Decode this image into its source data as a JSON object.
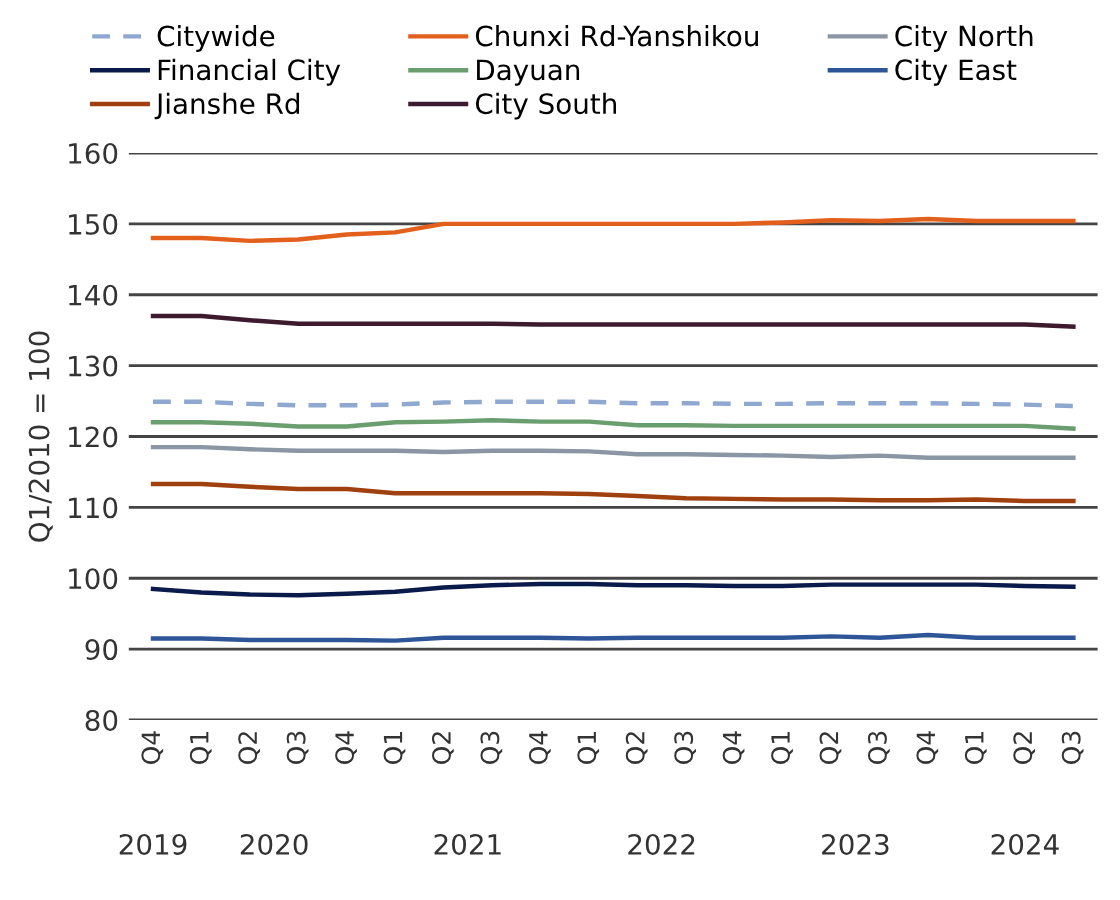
{
  "chart_data": {
    "type": "line",
    "ylabel": "Q1/2010 = 100",
    "categories": [
      "Q4",
      "Q1",
      "Q2",
      "Q3",
      "Q4",
      "Q1",
      "Q2",
      "Q3",
      "Q4",
      "Q1",
      "Q2",
      "Q3",
      "Q4",
      "Q1",
      "Q2",
      "Q3",
      "Q4",
      "Q1",
      "Q2",
      "Q3"
    ],
    "annotations": [
      "2019",
      "2020",
      "2021",
      "2022",
      "2023",
      "2024"
    ],
    "ylim": [
      80,
      160
    ],
    "yticks": [
      80,
      90,
      100,
      110,
      120,
      130,
      140,
      150,
      160
    ],
    "grid": "y",
    "legend": "top",
    "marker": "none",
    "series": [
      {
        "name": "Citywide",
        "color": "#8fa8d0",
        "line_style": "dashed",
        "values": [
          124.9,
          124.9,
          124.6,
          124.4,
          124.4,
          124.5,
          124.8,
          124.9,
          124.9,
          124.9,
          124.7,
          124.7,
          124.6,
          124.6,
          124.7,
          124.7,
          124.7,
          124.6,
          124.5,
          124.3
        ]
      },
      {
        "name": "Financial City",
        "color": "#0a1a4a",
        "values": [
          98.5,
          98,
          97.7,
          97.6,
          97.8,
          98.1,
          98.7,
          99,
          99.2,
          99.2,
          99,
          99,
          98.9,
          98.9,
          99.1,
          99.1,
          99.1,
          99.1,
          98.9,
          98.8
        ]
      },
      {
        "name": "Jianshe Rd",
        "color": "#a0400f",
        "values": [
          113.3,
          113.3,
          112.9,
          112.6,
          112.6,
          112,
          112,
          112,
          112,
          111.9,
          111.6,
          111.3,
          111.2,
          111.1,
          111.1,
          111,
          111,
          111.1,
          110.9,
          110.9
        ]
      },
      {
        "name": "Chunxi Rd-Yanshikou",
        "color": "#e35f1c",
        "values": [
          148,
          148,
          147.6,
          147.8,
          148.5,
          148.8,
          150,
          150,
          150,
          150,
          150,
          150,
          150,
          150.2,
          150.5,
          150.4,
          150.7,
          150.4,
          150.4,
          150.4
        ]
      },
      {
        "name": "Dayuan",
        "color": "#6a9e6e",
        "values": [
          122,
          122,
          121.8,
          121.4,
          121.4,
          122,
          122.1,
          122.3,
          122.1,
          122.1,
          121.6,
          121.6,
          121.5,
          121.5,
          121.5,
          121.5,
          121.5,
          121.5,
          121.5,
          121.1
        ]
      },
      {
        "name": "City South",
        "color": "#3d1a2e",
        "values": [
          137,
          137,
          136.4,
          135.9,
          135.9,
          135.9,
          135.9,
          135.9,
          135.8,
          135.8,
          135.8,
          135.8,
          135.8,
          135.8,
          135.8,
          135.8,
          135.8,
          135.8,
          135.8,
          135.5
        ]
      },
      {
        "name": "City North",
        "color": "#8a96a3",
        "values": [
          118.5,
          118.5,
          118.2,
          118,
          118,
          118,
          117.8,
          118,
          118,
          117.9,
          117.5,
          117.5,
          117.4,
          117.3,
          117.1,
          117.3,
          117,
          117,
          117,
          117
        ]
      },
      {
        "name": "City East",
        "color": "#2e5597",
        "values": [
          91.5,
          91.5,
          91.3,
          91.3,
          91.3,
          91.2,
          91.6,
          91.6,
          91.6,
          91.5,
          91.6,
          91.6,
          91.6,
          91.6,
          91.8,
          91.6,
          92,
          91.6,
          91.6,
          91.6
        ]
      }
    ]
  }
}
